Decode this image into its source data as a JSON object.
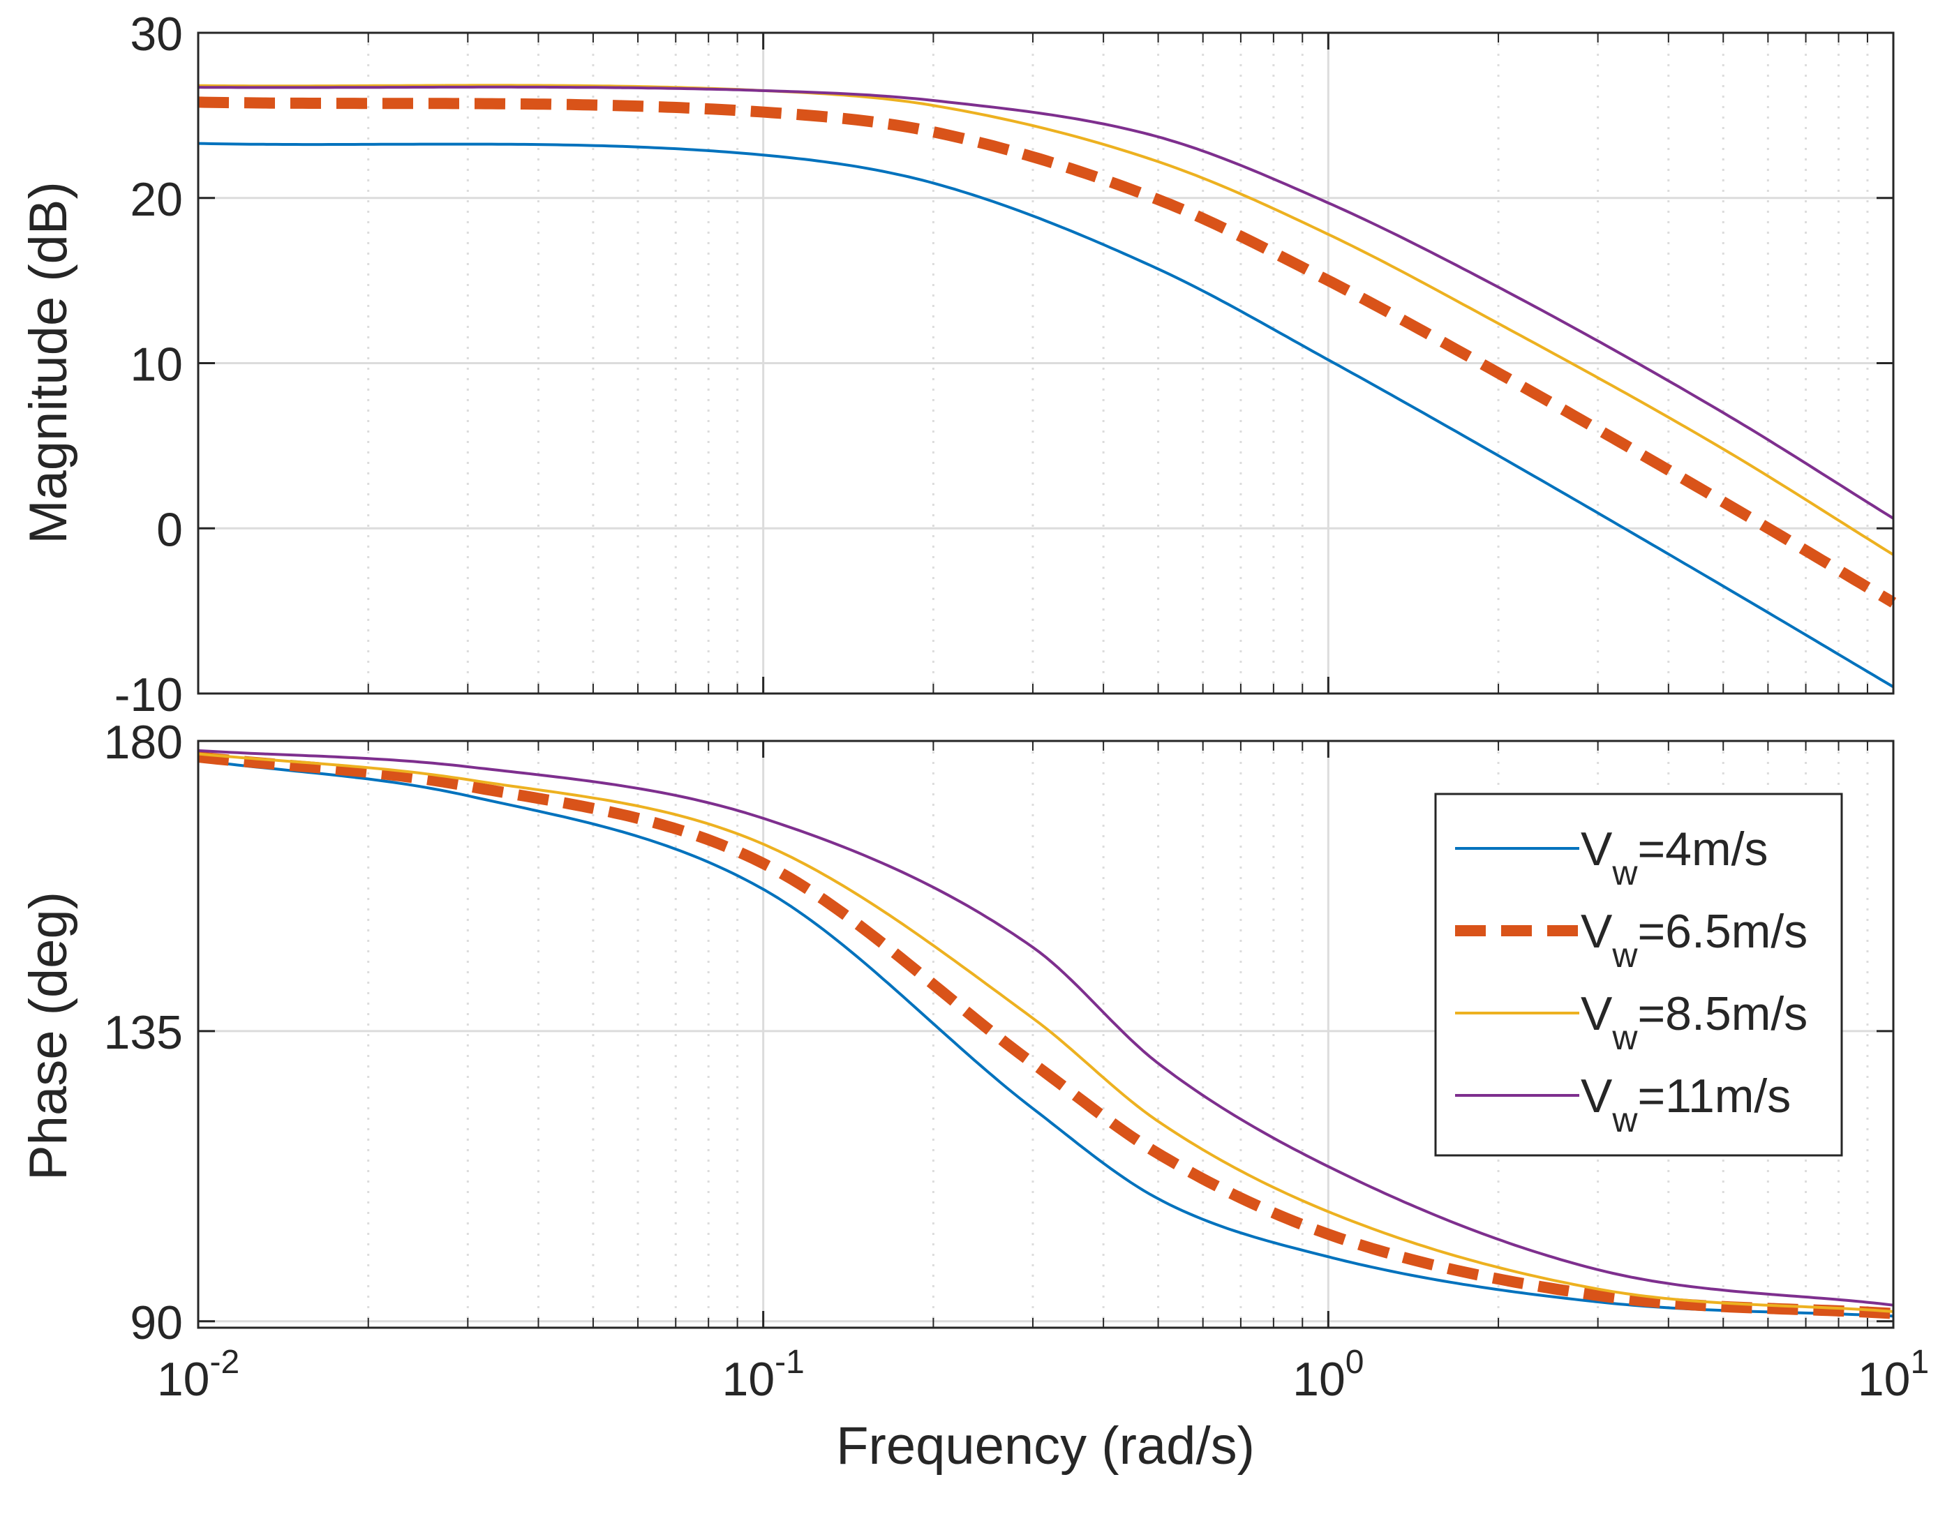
{
  "chart_data": {
    "type": "line",
    "title": "",
    "xlabel": "Frequency  (rad/s)",
    "xscale": "log",
    "xlim": [
      0.01,
      10
    ],
    "x_ticks": [
      {
        "base": "10",
        "exp": "-2"
      },
      {
        "base": "10",
        "exp": "-1"
      },
      {
        "base": "10",
        "exp": "0"
      },
      {
        "base": "10",
        "exp": "1"
      }
    ],
    "colors": {
      "vw4": "#0072BD",
      "vw65": "#D95319",
      "vw85": "#EDB120",
      "vw11": "#7E2F8E",
      "grid": "#dcdcdc",
      "axis": "#262626"
    },
    "series": [
      {
        "key": "vw4",
        "name_main": "V",
        "name_sub": "w",
        "name_rest": "=4m/s",
        "style": "solid",
        "dc_gain_db": 23.3,
        "corner_rad_s": 0.18,
        "magnitude_db": [
          [
            0.01,
            23.3
          ],
          [
            0.1,
            22.6
          ],
          [
            0.2,
            20.9
          ],
          [
            0.5,
            15.7
          ],
          [
            1,
            10.2
          ],
          [
            2,
            4.4
          ],
          [
            5,
            -3.5
          ],
          [
            10,
            -9.6
          ]
        ],
        "phase_deg": [
          [
            0.01,
            177
          ],
          [
            0.03,
            171.5
          ],
          [
            0.1,
            157
          ],
          [
            0.3,
            123
          ],
          [
            0.5,
            109
          ],
          [
            1,
            100
          ],
          [
            3,
            93
          ],
          [
            10,
            90.8
          ]
        ]
      },
      {
        "key": "vw65",
        "name_main": "V",
        "name_sub": "w",
        "name_rest": "=6.5m/s",
        "style": "dashed",
        "dc_gain_db": 25.8,
        "corner_rad_s": 0.25,
        "magnitude_db": [
          [
            0.01,
            25.8
          ],
          [
            0.1,
            25.2
          ],
          [
            0.2,
            24.0
          ],
          [
            0.5,
            19.9
          ],
          [
            1,
            15.0
          ],
          [
            2,
            9.4
          ],
          [
            5,
            1.6
          ],
          [
            10,
            -4.5
          ]
        ],
        "phase_deg": [
          [
            0.01,
            177.5
          ],
          [
            0.03,
            173
          ],
          [
            0.1,
            161
          ],
          [
            0.3,
            130
          ],
          [
            0.5,
            116
          ],
          [
            1,
            103.5
          ],
          [
            3,
            94
          ],
          [
            10,
            91.2
          ]
        ]
      },
      {
        "key": "vw85",
        "name_main": "V",
        "name_sub": "w",
        "name_rest": "=8.5m/s",
        "style": "solid",
        "dc_gain_db": 26.8,
        "corner_rad_s": 0.32,
        "magnitude_db": [
          [
            0.01,
            26.8
          ],
          [
            0.1,
            26.5
          ],
          [
            0.2,
            25.6
          ],
          [
            0.5,
            22.2
          ],
          [
            1,
            17.8
          ],
          [
            2,
            12.4
          ],
          [
            5,
            4.8
          ],
          [
            10,
            -1.6
          ]
        ],
        "phase_deg": [
          [
            0.01,
            178
          ],
          [
            0.03,
            174
          ],
          [
            0.1,
            164
          ],
          [
            0.3,
            137
          ],
          [
            0.5,
            121
          ],
          [
            1,
            107
          ],
          [
            3,
            95
          ],
          [
            10,
            91.5
          ]
        ]
      },
      {
        "key": "vw11",
        "name_main": "V",
        "name_sub": "w",
        "name_rest": "=11m/s",
        "style": "solid",
        "dc_gain_db": 26.7,
        "corner_rad_s": 0.45,
        "magnitude_db": [
          [
            0.01,
            26.7
          ],
          [
            0.1,
            26.5
          ],
          [
            0.2,
            25.9
          ],
          [
            0.5,
            23.7
          ],
          [
            1,
            19.7
          ],
          [
            2,
            14.6
          ],
          [
            5,
            7.0
          ],
          [
            10,
            0.6
          ]
        ],
        "phase_deg": [
          [
            0.01,
            178.5
          ],
          [
            0.03,
            176
          ],
          [
            0.1,
            168
          ],
          [
            0.3,
            148
          ],
          [
            0.5,
            130
          ],
          [
            1,
            114
          ],
          [
            3,
            98
          ],
          [
            10,
            92.5
          ]
        ]
      }
    ],
    "magnitude_panel": {
      "ylabel": "Magnitude (dB)",
      "ylim": [
        -10,
        30
      ],
      "y_ticks": [
        "-10",
        "0",
        "10",
        "20",
        "30"
      ],
      "grid": true
    },
    "phase_panel": {
      "ylabel": "Phase (deg)",
      "ylim": [
        89,
        180
      ],
      "y_ticks": [
        "90",
        "135",
        "180"
      ],
      "grid": true,
      "legend_position": "top-right"
    }
  }
}
